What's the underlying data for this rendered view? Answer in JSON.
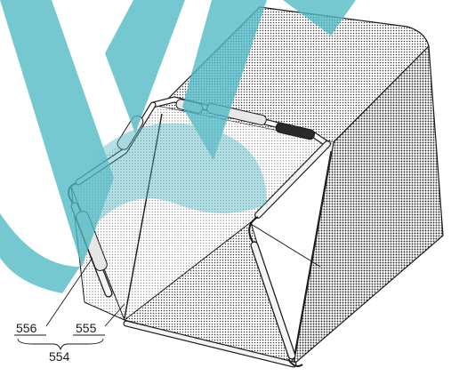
{
  "diagram": {
    "subject": "grass-catcher-basket",
    "labels": {
      "part_556": "556",
      "part_555": "555",
      "part_554": "554"
    }
  },
  "colors": {
    "watermark": "#4fb8c4",
    "line": "#1a1a1a",
    "mesh": "#3a3a3a",
    "background": "#ffffff"
  }
}
